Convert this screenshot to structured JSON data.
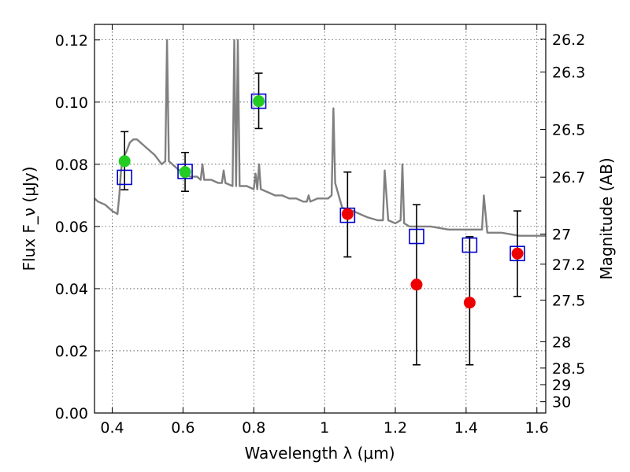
{
  "chart_data": {
    "type": "scatter",
    "title": "",
    "xlabel": "Wavelength λ (μm)",
    "ylabel": "Flux F_ν (μJy)",
    "y2label": "Magnitude (AB)",
    "xlim": [
      0.35,
      1.625
    ],
    "ylim": [
      0.0,
      0.125
    ],
    "grid": true,
    "x_ticks": [
      0.4,
      0.6,
      0.8,
      1.0,
      1.2,
      1.4,
      1.6
    ],
    "x_tick_labels": [
      "0.4",
      "0.6",
      "0.8",
      "1",
      "1.2",
      "1.4",
      "1.6"
    ],
    "y_ticks": [
      0.0,
      0.02,
      0.04,
      0.06,
      0.08,
      0.1,
      0.12
    ],
    "y_tick_labels": [
      "0.00",
      "0.02",
      "0.04",
      "0.06",
      "0.08",
      "0.10",
      "0.12"
    ],
    "y2_ticks": [
      26.2,
      26.3,
      26.5,
      26.7,
      27,
      27.2,
      27.5,
      28,
      28.5,
      29,
      30
    ],
    "y2_tick_labels": [
      "26.2",
      "26.3",
      "26.5",
      "26.7",
      "27",
      "27.2",
      "27.5",
      "28",
      "28.5",
      "29",
      "30"
    ],
    "series": [
      {
        "marker": "open-square",
        "color": "#0000cc",
        "x": [
          0.435,
          0.606,
          0.814,
          1.065,
          1.26,
          1.41,
          1.545
        ],
        "y": [
          0.0758,
          0.0777,
          0.1003,
          0.0636,
          0.0568,
          0.054,
          0.0513
        ]
      },
      {
        "marker": "circle",
        "color": "#22cc22",
        "x": [
          0.435,
          0.606,
          0.814
        ],
        "y": [
          0.081,
          0.0775,
          0.1003
        ]
      },
      {
        "marker": "circle",
        "color": "#ee0000",
        "x": [
          1.065,
          1.26,
          1.41,
          1.545
        ],
        "y": [
          0.064,
          0.0413,
          0.0355,
          0.0513
        ]
      },
      {
        "marker": "errorbar",
        "color": "#000000",
        "x": [
          0.435,
          0.606,
          0.814,
          1.065,
          1.26,
          1.41,
          1.545
        ],
        "y_low": [
          0.0718,
          0.0713,
          0.0915,
          0.0502,
          0.0155,
          0.0155,
          0.0375
        ],
        "y_high": [
          0.0905,
          0.0838,
          0.1093,
          0.0775,
          0.067,
          0.0567,
          0.065
        ]
      },
      {
        "marker": "line",
        "color": "#808080",
        "x": [
          0.35,
          0.36,
          0.38,
          0.4,
          0.415,
          0.42,
          0.425,
          0.43,
          0.435,
          0.44,
          0.45,
          0.46,
          0.47,
          0.48,
          0.49,
          0.5,
          0.52,
          0.54,
          0.55,
          0.555,
          0.56,
          0.57,
          0.58,
          0.6,
          0.62,
          0.64,
          0.65,
          0.655,
          0.66,
          0.68,
          0.7,
          0.71,
          0.715,
          0.72,
          0.74,
          0.745,
          0.75,
          0.755,
          0.76,
          0.78,
          0.8,
          0.805,
          0.81,
          0.815,
          0.82,
          0.84,
          0.86,
          0.88,
          0.9,
          0.92,
          0.94,
          0.95,
          0.955,
          0.96,
          0.98,
          1.0,
          1.01,
          1.02,
          1.025,
          1.03,
          1.05,
          1.08,
          1.1,
          1.12,
          1.15,
          1.165,
          1.17,
          1.18,
          1.2,
          1.215,
          1.22,
          1.225,
          1.24,
          1.26,
          1.3,
          1.35,
          1.4,
          1.43,
          1.445,
          1.45,
          1.46,
          1.5,
          1.55,
          1.6,
          1.625
        ],
        "y": [
          0.069,
          0.068,
          0.067,
          0.065,
          0.064,
          0.07,
          0.078,
          0.082,
          0.083,
          0.084,
          0.087,
          0.088,
          0.088,
          0.087,
          0.086,
          0.085,
          0.083,
          0.08,
          0.081,
          0.12,
          0.081,
          0.08,
          0.079,
          0.077,
          0.076,
          0.076,
          0.075,
          0.08,
          0.075,
          0.075,
          0.074,
          0.074,
          0.078,
          0.074,
          0.073,
          0.12,
          0.073,
          0.12,
          0.073,
          0.073,
          0.072,
          0.077,
          0.072,
          0.08,
          0.072,
          0.071,
          0.07,
          0.07,
          0.069,
          0.069,
          0.068,
          0.068,
          0.07,
          0.068,
          0.069,
          0.069,
          0.069,
          0.07,
          0.098,
          0.074,
          0.066,
          0.065,
          0.064,
          0.063,
          0.062,
          0.062,
          0.078,
          0.062,
          0.061,
          0.062,
          0.08,
          0.061,
          0.06,
          0.06,
          0.06,
          0.059,
          0.059,
          0.059,
          0.059,
          0.07,
          0.058,
          0.058,
          0.057,
          0.057,
          0.057
        ]
      }
    ]
  }
}
